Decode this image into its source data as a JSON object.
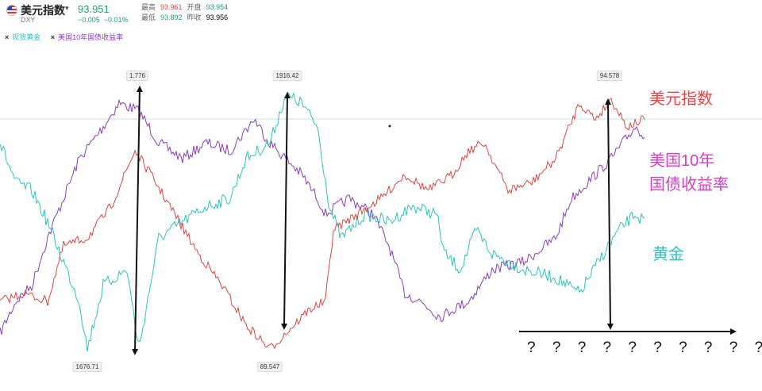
{
  "header": {
    "name": "美元指数",
    "dropdown_icon": "▾",
    "ticker": "DXY",
    "price": "93.951",
    "change": "−0.005",
    "change_pct": "−0.01%",
    "stats": {
      "high_label": "最高",
      "high": "93.961",
      "open_label": "开盘",
      "open": "93.954",
      "low_label": "最低",
      "low": "93.892",
      "prev_label": "昨收",
      "prev": "93.956"
    }
  },
  "legend": [
    {
      "label": "现货黄金",
      "color": "#2cc2c2",
      "remove_icon": "×"
    },
    {
      "label": "美国10年国债收益率",
      "color": "#8b3cc0",
      "remove_icon": "×"
    }
  ],
  "annotations": {
    "dxy": "美元指数",
    "yield_line1": "美国10年",
    "yield_line2": "国债收益率",
    "gold": "黄金",
    "question_marks": "? ? ? ? ? ? ? ? ? ? ?"
  },
  "peak_labels": [
    "1.776",
    "1916.42",
    "94.578",
    "1676.71",
    "89.547"
  ],
  "colors": {
    "dxy_up": "#e0463d",
    "dxy_down": "#2a9d6a",
    "gold": "#2cc2c2",
    "yield": "#8b3cc0",
    "annot_dxy": "#f04040",
    "annot_yield": "#d63cc8",
    "annot_gold": "#2cc2c2"
  },
  "chart_data": {
    "type": "line",
    "series": [
      {
        "name": "现货黄金"
      },
      {
        "name": "美国10年国债收益率"
      }
    ]
  }
}
